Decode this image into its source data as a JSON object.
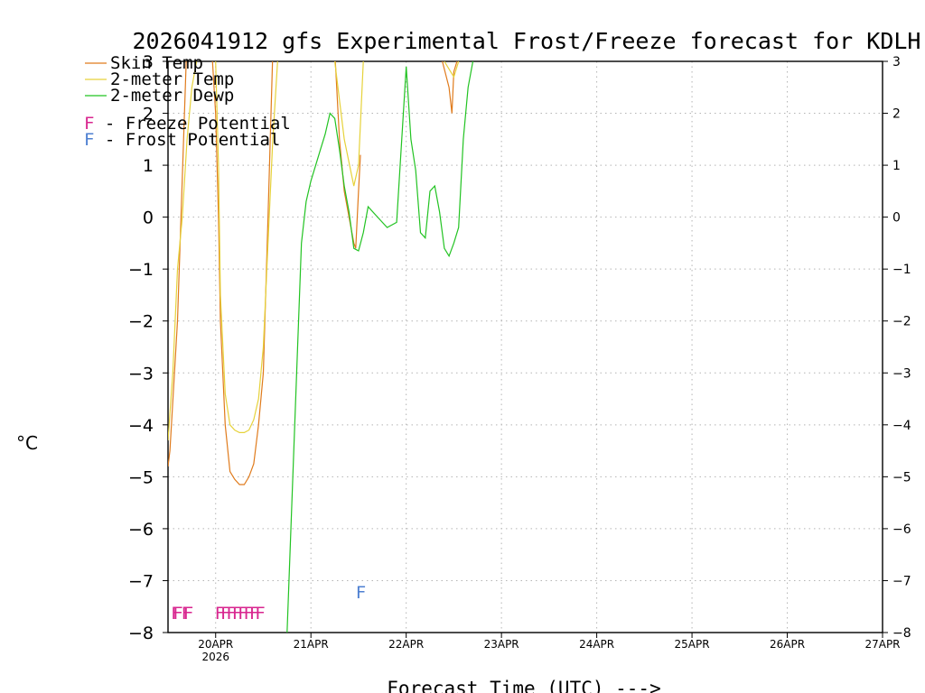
{
  "chart_data": {
    "type": "line",
    "title": "2026041912 gfs Experimental Frost/Freeze forecast for KDLH",
    "xlabel": "Forecast Time (UTC) --->",
    "ylabel": "°C",
    "ylim": [
      -8,
      3
    ],
    "xlim": [
      19.5,
      27
    ],
    "grid": true,
    "y_ticks": [
      3,
      2,
      1,
      0,
      -1,
      -2,
      -3,
      -4,
      -5,
      -6,
      -7,
      -8
    ],
    "y_tick_labels": [
      "3",
      "2",
      "1",
      "0",
      "−1",
      "−2",
      "−3",
      "−4",
      "−5",
      "−6",
      "−7",
      "−8"
    ],
    "x_ticks": [
      20,
      21,
      22,
      23,
      24,
      25,
      26,
      27
    ],
    "x_tick_labels": [
      "20APR",
      "21APR",
      "22APR",
      "23APR",
      "24APR",
      "25APR",
      "26APR",
      "27APR"
    ],
    "x_sublabel": "2026",
    "legend": [
      {
        "name": "Skin Temp",
        "color": "#e07b1c"
      },
      {
        "name": "2-meter Temp",
        "color": "#e6d23a"
      },
      {
        "name": "2-meter Dewp",
        "color": "#22c322"
      }
    ],
    "markers_legend": [
      {
        "letter": "F",
        "text": " - Freeze Potential",
        "color": "#d8268f"
      },
      {
        "letter": "F",
        "text": " - Frost Potential",
        "color": "#4d7fd1"
      }
    ],
    "series": [
      {
        "name": "Skin Temp",
        "color": "#e07b1c",
        "x": [
          19.5,
          19.52,
          19.6,
          19.7,
          19.8,
          19.95,
          20.0,
          20.03,
          20.05,
          20.1,
          20.15,
          20.2,
          20.25,
          20.3,
          20.35,
          20.4,
          20.45,
          20.5,
          20.55,
          20.6,
          20.65,
          20.7
        ],
        "y": [
          -4.8,
          -4.5,
          -2,
          3.5,
          3.5,
          3.5,
          2,
          0,
          -2,
          -4,
          -4.9,
          -5.05,
          -5.15,
          -5.15,
          -5.0,
          -4.75,
          -4.0,
          -3.0,
          0,
          3.2,
          3.5,
          3.5
        ],
        "x2": [
          21.25,
          21.3,
          21.35,
          21.4,
          21.45,
          21.47,
          21.5,
          21.52
        ],
        "y2": [
          3.2,
          1.5,
          0.5,
          0.0,
          -0.5,
          -0.6,
          0.5,
          1.2
        ],
        "x3": [
          22.38,
          22.45,
          22.48,
          22.5,
          22.55
        ],
        "y3": [
          3.0,
          2.5,
          2.0,
          2.8,
          3.1
        ]
      },
      {
        "name": "2-meter Temp",
        "color": "#e6d23a",
        "x": [
          19.5,
          19.55,
          19.6,
          19.65,
          19.7,
          19.75,
          19.8,
          19.85,
          19.9,
          19.95,
          20.0,
          20.03,
          20.05,
          20.1,
          20.15,
          20.2,
          20.25,
          20.3,
          20.35,
          20.4,
          20.45,
          20.5,
          20.55,
          20.6,
          20.65
        ],
        "y": [
          -4.3,
          -3.0,
          -1.0,
          0.0,
          1.5,
          2.5,
          3.0,
          3.5,
          3.5,
          3.5,
          3.0,
          1.0,
          -1.5,
          -3.4,
          -4.0,
          -4.1,
          -4.15,
          -4.15,
          -4.1,
          -3.9,
          -3.5,
          -2.5,
          -0.5,
          1.5,
          3.0
        ],
        "x2": [
          21.25,
          21.35,
          21.45,
          21.5,
          21.55
        ],
        "y2": [
          3.0,
          1.5,
          0.6,
          1.0,
          3.0
        ],
        "x3": [
          22.4,
          22.5,
          22.55
        ],
        "y3": [
          3.0,
          2.7,
          3.0
        ]
      },
      {
        "name": "2-meter Dewp",
        "color": "#22c322",
        "x": [
          20.75,
          20.8,
          20.85,
          20.9,
          20.95,
          21.0,
          21.05,
          21.1,
          21.15,
          21.2,
          21.25,
          21.3,
          21.35,
          21.4,
          21.45,
          21.5,
          21.55,
          21.6,
          21.7,
          21.8,
          21.9,
          22.0,
          22.05,
          22.1,
          22.15,
          22.2,
          22.25,
          22.3,
          22.35,
          22.4,
          22.45,
          22.5,
          22.55,
          22.6,
          22.65,
          22.7
        ],
        "y": [
          -8.0,
          -5.5,
          -3.0,
          -0.5,
          0.3,
          0.7,
          1.0,
          1.3,
          1.6,
          2.0,
          1.9,
          1.3,
          0.6,
          0.1,
          -0.6,
          -0.65,
          -0.3,
          0.2,
          0.0,
          -0.2,
          -0.1,
          2.9,
          1.5,
          0.9,
          -0.3,
          -0.4,
          0.5,
          0.6,
          0.1,
          -0.6,
          -0.75,
          -0.5,
          -0.2,
          1.5,
          2.5,
          3.0
        ]
      }
    ],
    "annotations": [
      {
        "text": "FF",
        "x": 19.53,
        "y": -7.55,
        "color": "#d8268f"
      },
      {
        "text": "FF",
        "x": 19.55,
        "y": -7.55,
        "color": "#d8268f"
      },
      {
        "text": "FFFFFFFF",
        "x": 19.99,
        "y": -7.55,
        "color": "#d8268f"
      },
      {
        "text": "F",
        "x": 21.47,
        "y": -7.15,
        "color": "#4d7fd1"
      }
    ]
  }
}
